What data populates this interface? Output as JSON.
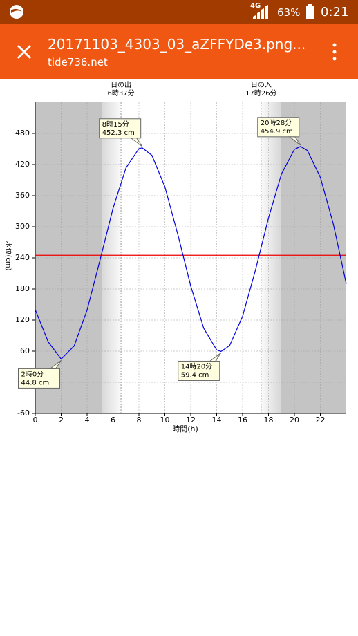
{
  "status_bar": {
    "network": "4G",
    "battery": "63%",
    "time": "0:21"
  },
  "app_bar": {
    "title": "20171103_4303_03_aZFFYDe3.png...",
    "subtitle": "tide736.net"
  },
  "chart_data": {
    "type": "line",
    "x": [
      0,
      1,
      2,
      3,
      4,
      5,
      6,
      7,
      8,
      8.25,
      9,
      10,
      11,
      12,
      13,
      14,
      14.333,
      15,
      16,
      17,
      18,
      19,
      20,
      20.467,
      21,
      22,
      23,
      24
    ],
    "series": [
      {
        "name": "水位",
        "color": "#0000dd",
        "values": [
          140,
          78,
          44.8,
          70.1,
          139.3,
          235.8,
          335.4,
          413.5,
          450.7,
          452.3,
          437.8,
          377.3,
          285.3,
          185.6,
          104.2,
          62.4,
          59.4,
          70.9,
          127.4,
          217.1,
          317,
          401.8,
          449.3,
          454.9,
          447.2,
          395.3,
          305.5,
          190
        ]
      }
    ],
    "xlabel": "時間(h)",
    "ylabel": "水位(cm)",
    "xlim": [
      0,
      24
    ],
    "xticks": [
      0,
      2,
      4,
      6,
      8,
      10,
      12,
      14,
      16,
      18,
      20,
      22
    ],
    "ylim": [
      -60,
      540
    ],
    "yticks": [
      -60,
      0,
      60,
      120,
      180,
      240,
      300,
      360,
      420,
      480
    ],
    "grid": true,
    "mean_level": {
      "value": 245,
      "color": "#ee0000"
    },
    "sun": [
      {
        "x": 6.617,
        "text": [
          "日の出",
          "6時37分"
        ]
      },
      {
        "x": 17.433,
        "text": [
          "日の入",
          "17時26分"
        ]
      }
    ],
    "annotations": [
      {
        "x": 2,
        "y": 44.8,
        "text": [
          "2時0分",
          "44.8 cm"
        ]
      },
      {
        "x": 8.25,
        "y": 452.3,
        "text": [
          "8時15分",
          "452.3 cm"
        ]
      },
      {
        "x": 14.333,
        "y": 59.4,
        "text": [
          "14時20分",
          "59.4 cm"
        ]
      },
      {
        "x": 20.467,
        "y": 454.9,
        "text": [
          "20時28分",
          "454.9 cm"
        ]
      }
    ]
  }
}
